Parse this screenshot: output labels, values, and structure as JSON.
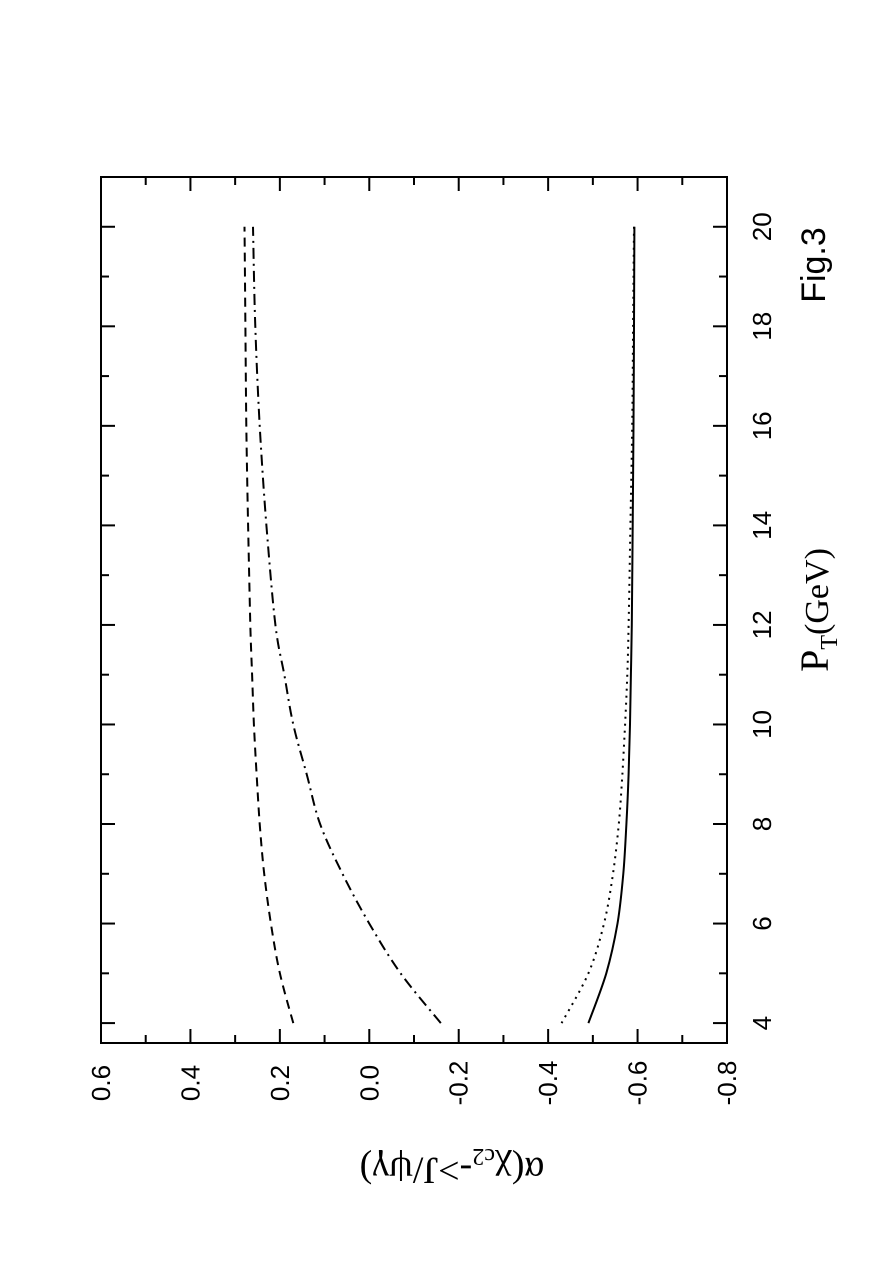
{
  "figure_label": "Fig.3",
  "chart_data": {
    "type": "line",
    "title": "",
    "xlabel": "P_T(GeV)",
    "xlabel_main": "P",
    "xlabel_sub": "T",
    "xlabel_unit": "(GeV)",
    "ylabel": "α(χ_c2->J/ψγ)",
    "ylabel_parts": {
      "pre": "α(χ",
      "sub": "c2",
      "post": "->J/ψγ)"
    },
    "xlim": [
      3.6,
      21.0
    ],
    "ylim": [
      -0.8,
      0.6
    ],
    "xticks": [
      4,
      6,
      8,
      10,
      12,
      14,
      16,
      18,
      20
    ],
    "xtick_labels": [
      "4",
      "6",
      "8",
      "10",
      "12",
      "14",
      "16",
      "18",
      "20"
    ],
    "yticks": [
      0.6,
      0.4,
      0.2,
      0.0,
      -0.2,
      -0.4,
      -0.6,
      -0.8
    ],
    "ytick_labels": [
      "0.6",
      "0.4",
      "0.2",
      "0.0",
      "-0.2",
      "-0.4",
      "-0.6",
      "-0.8"
    ],
    "grid": false,
    "orientation": "rotated 90 degrees counter-clockwise",
    "series": [
      {
        "style": "dashed",
        "x": [
          4,
          5,
          6,
          7,
          8,
          9,
          10,
          11,
          12,
          14,
          16,
          18,
          20
        ],
        "y": [
          0.17,
          0.2,
          0.22,
          0.235,
          0.245,
          0.252,
          0.258,
          0.262,
          0.266,
          0.271,
          0.275,
          0.277,
          0.279
        ]
      },
      {
        "style": "dash-dot",
        "x": [
          4,
          5,
          6,
          7,
          8,
          9,
          10,
          11,
          12,
          14,
          16,
          18,
          20
        ],
        "y": [
          -0.16,
          -0.07,
          0.0,
          0.06,
          0.11,
          0.14,
          0.17,
          0.19,
          0.21,
          0.23,
          0.245,
          0.255,
          0.26
        ]
      },
      {
        "style": "dotted",
        "x": [
          4,
          5,
          6,
          7,
          8,
          9,
          10,
          11,
          12,
          14,
          16,
          18,
          20
        ],
        "y": [
          -0.43,
          -0.49,
          -0.525,
          -0.545,
          -0.558,
          -0.566,
          -0.572,
          -0.577,
          -0.58,
          -0.584,
          -0.588,
          -0.59,
          -0.592
        ]
      },
      {
        "style": "solid",
        "x": [
          4,
          5,
          6,
          7,
          8,
          9,
          10,
          11,
          12,
          14,
          16,
          18,
          20
        ],
        "y": [
          -0.49,
          -0.53,
          -0.555,
          -0.568,
          -0.575,
          -0.58,
          -0.583,
          -0.585,
          -0.587,
          -0.589,
          -0.591,
          -0.592,
          -0.593
        ]
      }
    ]
  }
}
